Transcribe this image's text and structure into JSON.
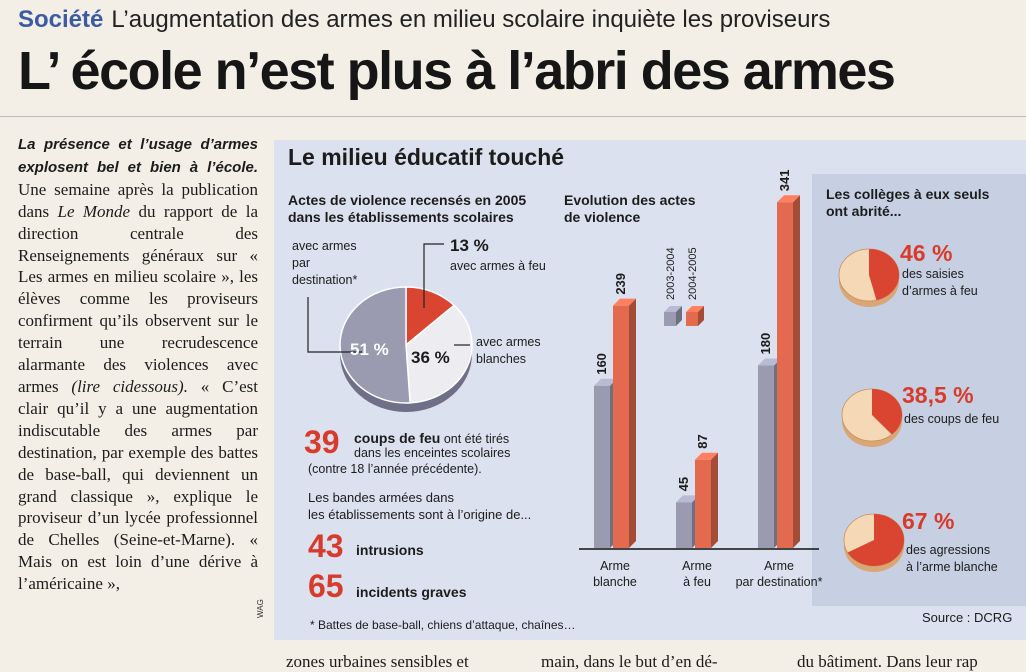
{
  "kicker": {
    "section": "Société",
    "text": "L’augmentation des armes en milieu scolaire inquiète les proviseurs"
  },
  "headline": "L’ école n’est plus à l’abri des armes",
  "article": {
    "lead": "La présence et l’usage d’armes explosent bel et bien à l’école.",
    "p1": " Une semaine après la publication dans ",
    "le_monde": "Le Monde",
    "p2": " du rapport de la direction centrale des Renseignements généraux sur « Les armes en milieu scolaire », les élèves comme les proviseurs confirment qu’ils observent sur le terrain une recrudescence alarmante des violences avec armes ",
    "lire": "(lire cidessous).",
    "p3": " « C’est clair qu’il y a une augmentation indiscutable des armes par destination, par exemple des battes de base-ball, qui deviennent un grand classique », explique le proviseur d’un lycée professionnel de Chelles (Seine-et-Marne). « Mais on est loin d’une dérive à l’américaine »,"
  },
  "credit": "WAG",
  "bottom_lines": [
    "zones urbaines sensibles et",
    "main, dans le but d’en dé-",
    "du bâtiment. Dans leur rap"
  ],
  "infographic": {
    "title": "Le milieu éducatif touché",
    "pie_title": "Actes de violence recensés en 2005 dans les établissements scolaires",
    "pie_title_lines": [
      "Actes de violence recensés en 2005",
      "dans les établissements scolaires"
    ],
    "pie": {
      "slices": [
        {
          "label_lines": [
            "avec armes",
            "par",
            "destination*"
          ],
          "value_label": "51 %",
          "value": 51,
          "color": "#9a9bb0"
        },
        {
          "label_lines": [
            "avec armes à feu"
          ],
          "value_label": "13 %",
          "value": 13,
          "color": "#d94530"
        },
        {
          "label_lines": [
            "avec armes",
            "blanches"
          ],
          "value_label": "36 %",
          "value": 36,
          "color": "#ececf1"
        }
      ]
    },
    "stats": {
      "shots": {
        "number": "39",
        "label": "coups de feu",
        "rest": " ont été tirés",
        "line2": "dans les enceintes scolaires",
        "line3": "(contre 18 l’année précédente)."
      },
      "gangs_intro_lines": [
        "Les bandes armées dans",
        "les établissements sont à l’origine de..."
      ],
      "intrusions": {
        "number": "43",
        "label": "intrusions"
      },
      "incidents": {
        "number": "65",
        "label": "incidents graves"
      }
    },
    "bar_title_lines": [
      "Evolution des actes",
      "de violence"
    ],
    "footnote": "* Battes de base-ball, chiens d’attaque, chaînes…",
    "source": "Source : DCRG",
    "right": {
      "title_lines": [
        "Les collèges à eux seuls",
        "ont abrité..."
      ],
      "items": [
        {
          "value_label": "46 %",
          "value": 46,
          "lines": [
            "des saisies",
            "d’armes à feu"
          ]
        },
        {
          "value_label": "38,5 %",
          "value": 38.5,
          "lines": [
            "des coups de feu"
          ]
        },
        {
          "value_label": "67 %",
          "value": 67,
          "lines": [
            "des agressions",
            "à l’arme blanche"
          ]
        }
      ]
    }
  },
  "chart_data": [
    {
      "type": "pie",
      "title": "Actes de violence recensés en 2005 dans les établissements scolaires",
      "labels": [
        "avec armes par destination*",
        "avec armes à feu",
        "avec armes blanches"
      ],
      "values": [
        51,
        13,
        36
      ],
      "colors": [
        "#9a9bb0",
        "#d94530",
        "#ececf1"
      ]
    },
    {
      "type": "bar",
      "title": "Evolution des actes de violence",
      "categories": [
        "Arme blanche",
        "Arme à feu",
        "Arme par destination*"
      ],
      "series": [
        {
          "name": "2003-2004",
          "values": [
            160,
            45,
            180
          ],
          "color": "#9a9bb0"
        },
        {
          "name": "2004-2005",
          "values": [
            239,
            87,
            341
          ],
          "color": "#e36a4e"
        }
      ],
      "legend": "top"
    },
    {
      "type": "pie",
      "title": "Les collèges à eux seuls ont abrité...",
      "labels": [
        "des saisies d’armes à feu",
        "des coups de feu",
        "des agressions à l’arme blanche"
      ],
      "values": [
        46,
        38.5,
        67
      ]
    }
  ]
}
